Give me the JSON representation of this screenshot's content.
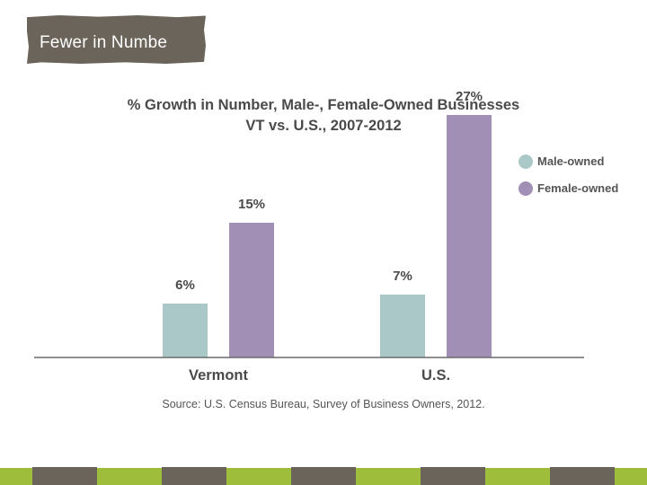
{
  "slide": {
    "title": "Fewer in Numbe",
    "colors": {
      "title_bg": "#6b645a",
      "strip_green": "#9ebd3a",
      "strip_gray": "#6b645a"
    }
  },
  "chart_data": {
    "type": "bar",
    "title_line1": "% Growth in Number, Male-, Female-Owned Businesses",
    "title_line2": "VT vs. U.S., 2007-2012",
    "categories": [
      "Vermont",
      "U.S."
    ],
    "series": [
      {
        "name": "Male-owned",
        "values": [
          6,
          7
        ],
        "labels": [
          "6%",
          "7%"
        ],
        "color": "#abc8c8"
      },
      {
        "name": "Female-owned",
        "values": [
          15,
          27
        ],
        "labels": [
          "15%",
          "27%"
        ],
        "color": "#a18fb5"
      }
    ],
    "ylim": [
      0,
      30
    ],
    "xlabel": "",
    "ylabel": "",
    "legend_position": "top-right",
    "source": "Source: U.S. Census Bureau, Survey of Business Owners, 2012."
  }
}
